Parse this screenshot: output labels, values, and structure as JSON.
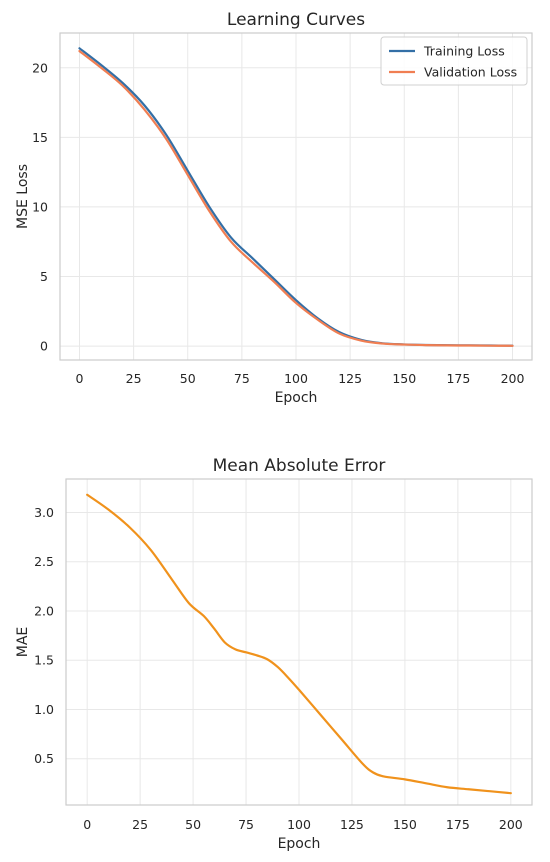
{
  "chart_data": [
    {
      "type": "line",
      "title": "Learning Curves",
      "xlabel": "Epoch",
      "ylabel": "MSE Loss",
      "xlim": [
        -9,
        209
      ],
      "ylim": [
        -1.0,
        22.5
      ],
      "xticks": [
        0,
        25,
        50,
        75,
        100,
        125,
        150,
        175,
        200
      ],
      "yticks": [
        0,
        5,
        10,
        15,
        20
      ],
      "grid": true,
      "legend": "top-right",
      "series": [
        {
          "name": "Training Loss",
          "color": "#336fa6",
          "x": [
            0,
            10,
            20,
            30,
            40,
            50,
            60,
            70,
            80,
            90,
            100,
            110,
            120,
            130,
            140,
            150,
            160,
            170,
            180,
            190,
            200
          ],
          "y": [
            21.4,
            20.2,
            18.9,
            17.3,
            15.2,
            12.6,
            10.0,
            7.8,
            6.3,
            4.8,
            3.3,
            2.0,
            1.0,
            0.45,
            0.2,
            0.12,
            0.08,
            0.06,
            0.05,
            0.04,
            0.03
          ]
        },
        {
          "name": "Validation Loss",
          "color": "#f07e52",
          "x": [
            0,
            10,
            20,
            30,
            40,
            50,
            60,
            70,
            80,
            90,
            100,
            110,
            120,
            130,
            140,
            150,
            160,
            170,
            180,
            190,
            200
          ],
          "y": [
            21.2,
            20.0,
            18.7,
            17.0,
            14.9,
            12.3,
            9.7,
            7.5,
            6.0,
            4.6,
            3.1,
            1.9,
            0.9,
            0.4,
            0.18,
            0.11,
            0.07,
            0.05,
            0.04,
            0.03,
            0.02
          ]
        }
      ]
    },
    {
      "type": "line",
      "title": "Mean Absolute Error",
      "xlabel": "Epoch",
      "ylabel": "MAE",
      "xlim": [
        -10,
        210
      ],
      "ylim": [
        0.03,
        3.34
      ],
      "xticks": [
        0,
        25,
        50,
        75,
        100,
        125,
        150,
        175,
        200
      ],
      "yticks": [
        0.5,
        1.0,
        1.5,
        2.0,
        2.5,
        3.0
      ],
      "ytick_labels": [
        "0.5",
        "1.0",
        "1.5",
        "2.0",
        "2.5",
        "3.0"
      ],
      "grid": true,
      "series": [
        {
          "color": "#f0921c",
          "x": [
            0,
            10,
            20,
            30,
            40,
            48,
            55,
            60,
            65,
            70,
            75,
            80,
            85,
            90,
            95,
            100,
            110,
            120,
            130,
            135,
            140,
            150,
            160,
            170,
            180,
            190,
            200
          ],
          "y": [
            3.18,
            3.03,
            2.85,
            2.62,
            2.32,
            2.08,
            1.95,
            1.82,
            1.68,
            1.61,
            1.58,
            1.55,
            1.51,
            1.43,
            1.32,
            1.2,
            0.95,
            0.7,
            0.45,
            0.36,
            0.32,
            0.29,
            0.25,
            0.21,
            0.19,
            0.17,
            0.15
          ]
        }
      ]
    }
  ]
}
